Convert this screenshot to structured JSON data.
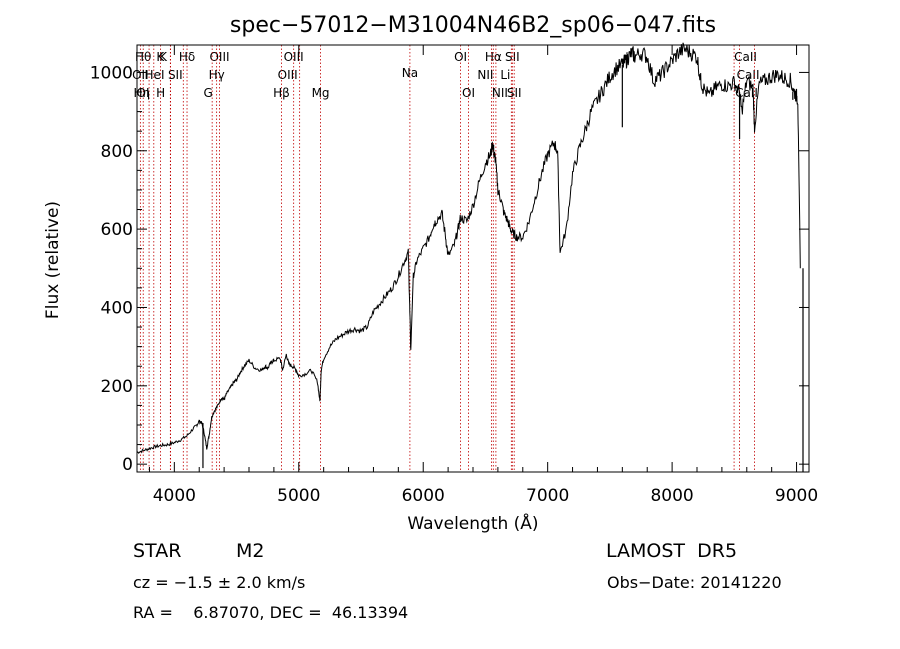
{
  "chart_data": {
    "type": "line",
    "title": "spec−57012−M31004N46B2_sp06−047.fits",
    "xlabel": "Wavelength (Å)",
    "ylabel": "Flux (relative)",
    "xlim": [
      3700,
      9100
    ],
    "ylim": [
      -20,
      1070
    ],
    "xticks": [
      4000,
      5000,
      6000,
      7000,
      8000,
      9000
    ],
    "yticks": [
      0,
      200,
      400,
      600,
      800,
      1000
    ],
    "grid": false,
    "series": [
      {
        "color": "#000000",
        "x": [
          3700,
          3750,
          3800,
          3850,
          3900,
          3950,
          4000,
          4050,
          4100,
          4150,
          4180,
          4200,
          4220,
          4240,
          4260,
          4280,
          4300,
          4320,
          4350,
          4380,
          4400,
          4420,
          4450,
          4480,
          4500,
          4530,
          4560,
          4600,
          4650,
          4700,
          4730,
          4750,
          4780,
          4800,
          4850,
          4870,
          4900,
          4920,
          4950,
          4980,
          5000,
          5050,
          5100,
          5150,
          5170,
          5180,
          5200,
          5250,
          5300,
          5350,
          5400,
          5450,
          5500,
          5550,
          5600,
          5650,
          5700,
          5750,
          5800,
          5850,
          5880,
          5890,
          5900,
          5920,
          5950,
          6000,
          6050,
          6080,
          6100,
          6150,
          6180,
          6200,
          6250,
          6280,
          6300,
          6350,
          6400,
          6450,
          6500,
          6540,
          6560,
          6570,
          6580,
          6600,
          6620,
          6650,
          6680,
          6700,
          6720,
          6750,
          6800,
          6850,
          6900,
          6950,
          7000,
          7050,
          7080,
          7100,
          7150,
          7200,
          7250,
          7300,
          7350,
          7400,
          7450,
          7500,
          7550,
          7600,
          7630,
          7650,
          7680,
          7700,
          7750,
          7800,
          7850,
          7900,
          7950,
          8000,
          8050,
          8100,
          8150,
          8200,
          8230,
          8250,
          8300,
          8350,
          8400,
          8450,
          8500,
          8540,
          8560,
          8600,
          8650,
          8662,
          8700,
          8750,
          8800,
          8850,
          8900,
          8950,
          8980,
          9000,
          9010,
          9030
        ],
        "values": [
          30,
          35,
          40,
          45,
          48,
          50,
          55,
          62,
          72,
          90,
          100,
          110,
          105,
          80,
          40,
          75,
          120,
          135,
          150,
          170,
          165,
          180,
          195,
          210,
          215,
          235,
          250,
          265,
          245,
          240,
          250,
          245,
          260,
          265,
          270,
          240,
          280,
          255,
          250,
          240,
          225,
          230,
          240,
          210,
          160,
          240,
          270,
          300,
          320,
          330,
          340,
          345,
          340,
          350,
          390,
          410,
          430,
          450,
          480,
          520,
          540,
          420,
          290,
          480,
          520,
          550,
          580,
          610,
          620,
          640,
          580,
          530,
          560,
          600,
          630,
          620,
          660,
          720,
          770,
          790,
          820,
          790,
          780,
          700,
          680,
          640,
          620,
          600,
          590,
          580,
          580,
          620,
          680,
          740,
          790,
          820,
          800,
          540,
          600,
          740,
          800,
          850,
          900,
          930,
          960,
          990,
          1010,
          1020,
          1030,
          1040,
          1050,
          1040,
          1050,
          1040,
          980,
          990,
          1010,
          1030,
          1050,
          1060,
          1050,
          1040,
          980,
          960,
          940,
          960,
          970,
          965,
          975,
          950,
          900,
          980,
          960,
          860,
          970,
          980,
          990,
          995,
          985,
          980,
          950,
          940,
          930,
          500
        ],
        "features": [
          {
            "x": 4230,
            "y": -10
          },
          {
            "x": 5900,
            "y": 290
          },
          {
            "x": 7600,
            "y": 860
          },
          {
            "x": 8542,
            "y": 830
          },
          {
            "x": 8662,
            "y": 860
          },
          {
            "x": 8970,
            "y": 930
          }
        ]
      }
    ],
    "line_markers": [
      {
        "x": 3750,
        "label": "Hθ",
        "row": 0,
        "dx": 0
      },
      {
        "x": 3797,
        "label": "K",
        "row": 0,
        "dx": 14
      },
      {
        "x": 3968,
        "label": "K",
        "row": 0,
        "dx": -10
      },
      {
        "x": 4102,
        "label": "Hδ",
        "row": 0,
        "dx": 0
      },
      {
        "x": 4363,
        "label": "OIII",
        "row": 0,
        "dx": 0
      },
      {
        "x": 5007,
        "label": "OIII",
        "row": 0,
        "dx": -6
      },
      {
        "x": 6300,
        "label": "OI",
        "row": 0,
        "dx": 0
      },
      {
        "x": 6563,
        "label": "Hα",
        "row": 0,
        "dx": 0
      },
      {
        "x": 6716,
        "label": "SII",
        "row": 0,
        "dx": 0
      },
      {
        "x": 8542,
        "label": "CaII",
        "row": 0,
        "dx": 6
      },
      {
        "x": 3727,
        "label": "OII",
        "row": 1,
        "dx": 0
      },
      {
        "x": 3889,
        "label": "HeI",
        "row": 1,
        "dx": -6
      },
      {
        "x": 4072,
        "label": "SII",
        "row": 1,
        "dx": -8
      },
      {
        "x": 4340,
        "label": "Hγ",
        "row": 1,
        "dx": 0
      },
      {
        "x": 4959,
        "label": "OIII",
        "row": 1,
        "dx": -6
      },
      {
        "x": 6548,
        "label": "NII",
        "row": 1,
        "dx": -6
      },
      {
        "x": 6708,
        "label": "Li",
        "row": 1,
        "dx": -6
      },
      {
        "x": 8498,
        "label": "CaII",
        "row": 1,
        "dx": 14
      },
      {
        "x": 3700,
        "label": "OI",
        "row": 2,
        "dx": 6
      },
      {
        "x": 3835,
        "label": "Hη",
        "row": 2,
        "dx": -12
      },
      {
        "x": 3970,
        "label": "H",
        "row": 2,
        "dx": -10
      },
      {
        "x": 4304,
        "label": "G",
        "row": 2,
        "dx": -4
      },
      {
        "x": 4861,
        "label": "Hβ",
        "row": 2,
        "dx": 0
      },
      {
        "x": 5175,
        "label": "Mg",
        "row": 2,
        "dx": 0
      },
      {
        "x": 5893,
        "label": "Na",
        "row": 0.7,
        "dx": 0
      },
      {
        "x": 6364,
        "label": "OI",
        "row": 2,
        "dx": 0
      },
      {
        "x": 6584,
        "label": "NII",
        "row": 2,
        "dx": 4
      },
      {
        "x": 6731,
        "label": "SII",
        "row": 2,
        "dx": 0
      },
      {
        "x": 8662,
        "label": "CaII",
        "row": 2,
        "dx": -8
      }
    ]
  },
  "info": {
    "object_class": "STAR",
    "subclass": "M2",
    "survey": "LAMOST  DR5",
    "cz": "cz = −1.5 ± 2.0 km/s",
    "obs_date": "Obs−Date: 20141220",
    "coords": "RA =    6.87070, DEC =  46.13394"
  }
}
